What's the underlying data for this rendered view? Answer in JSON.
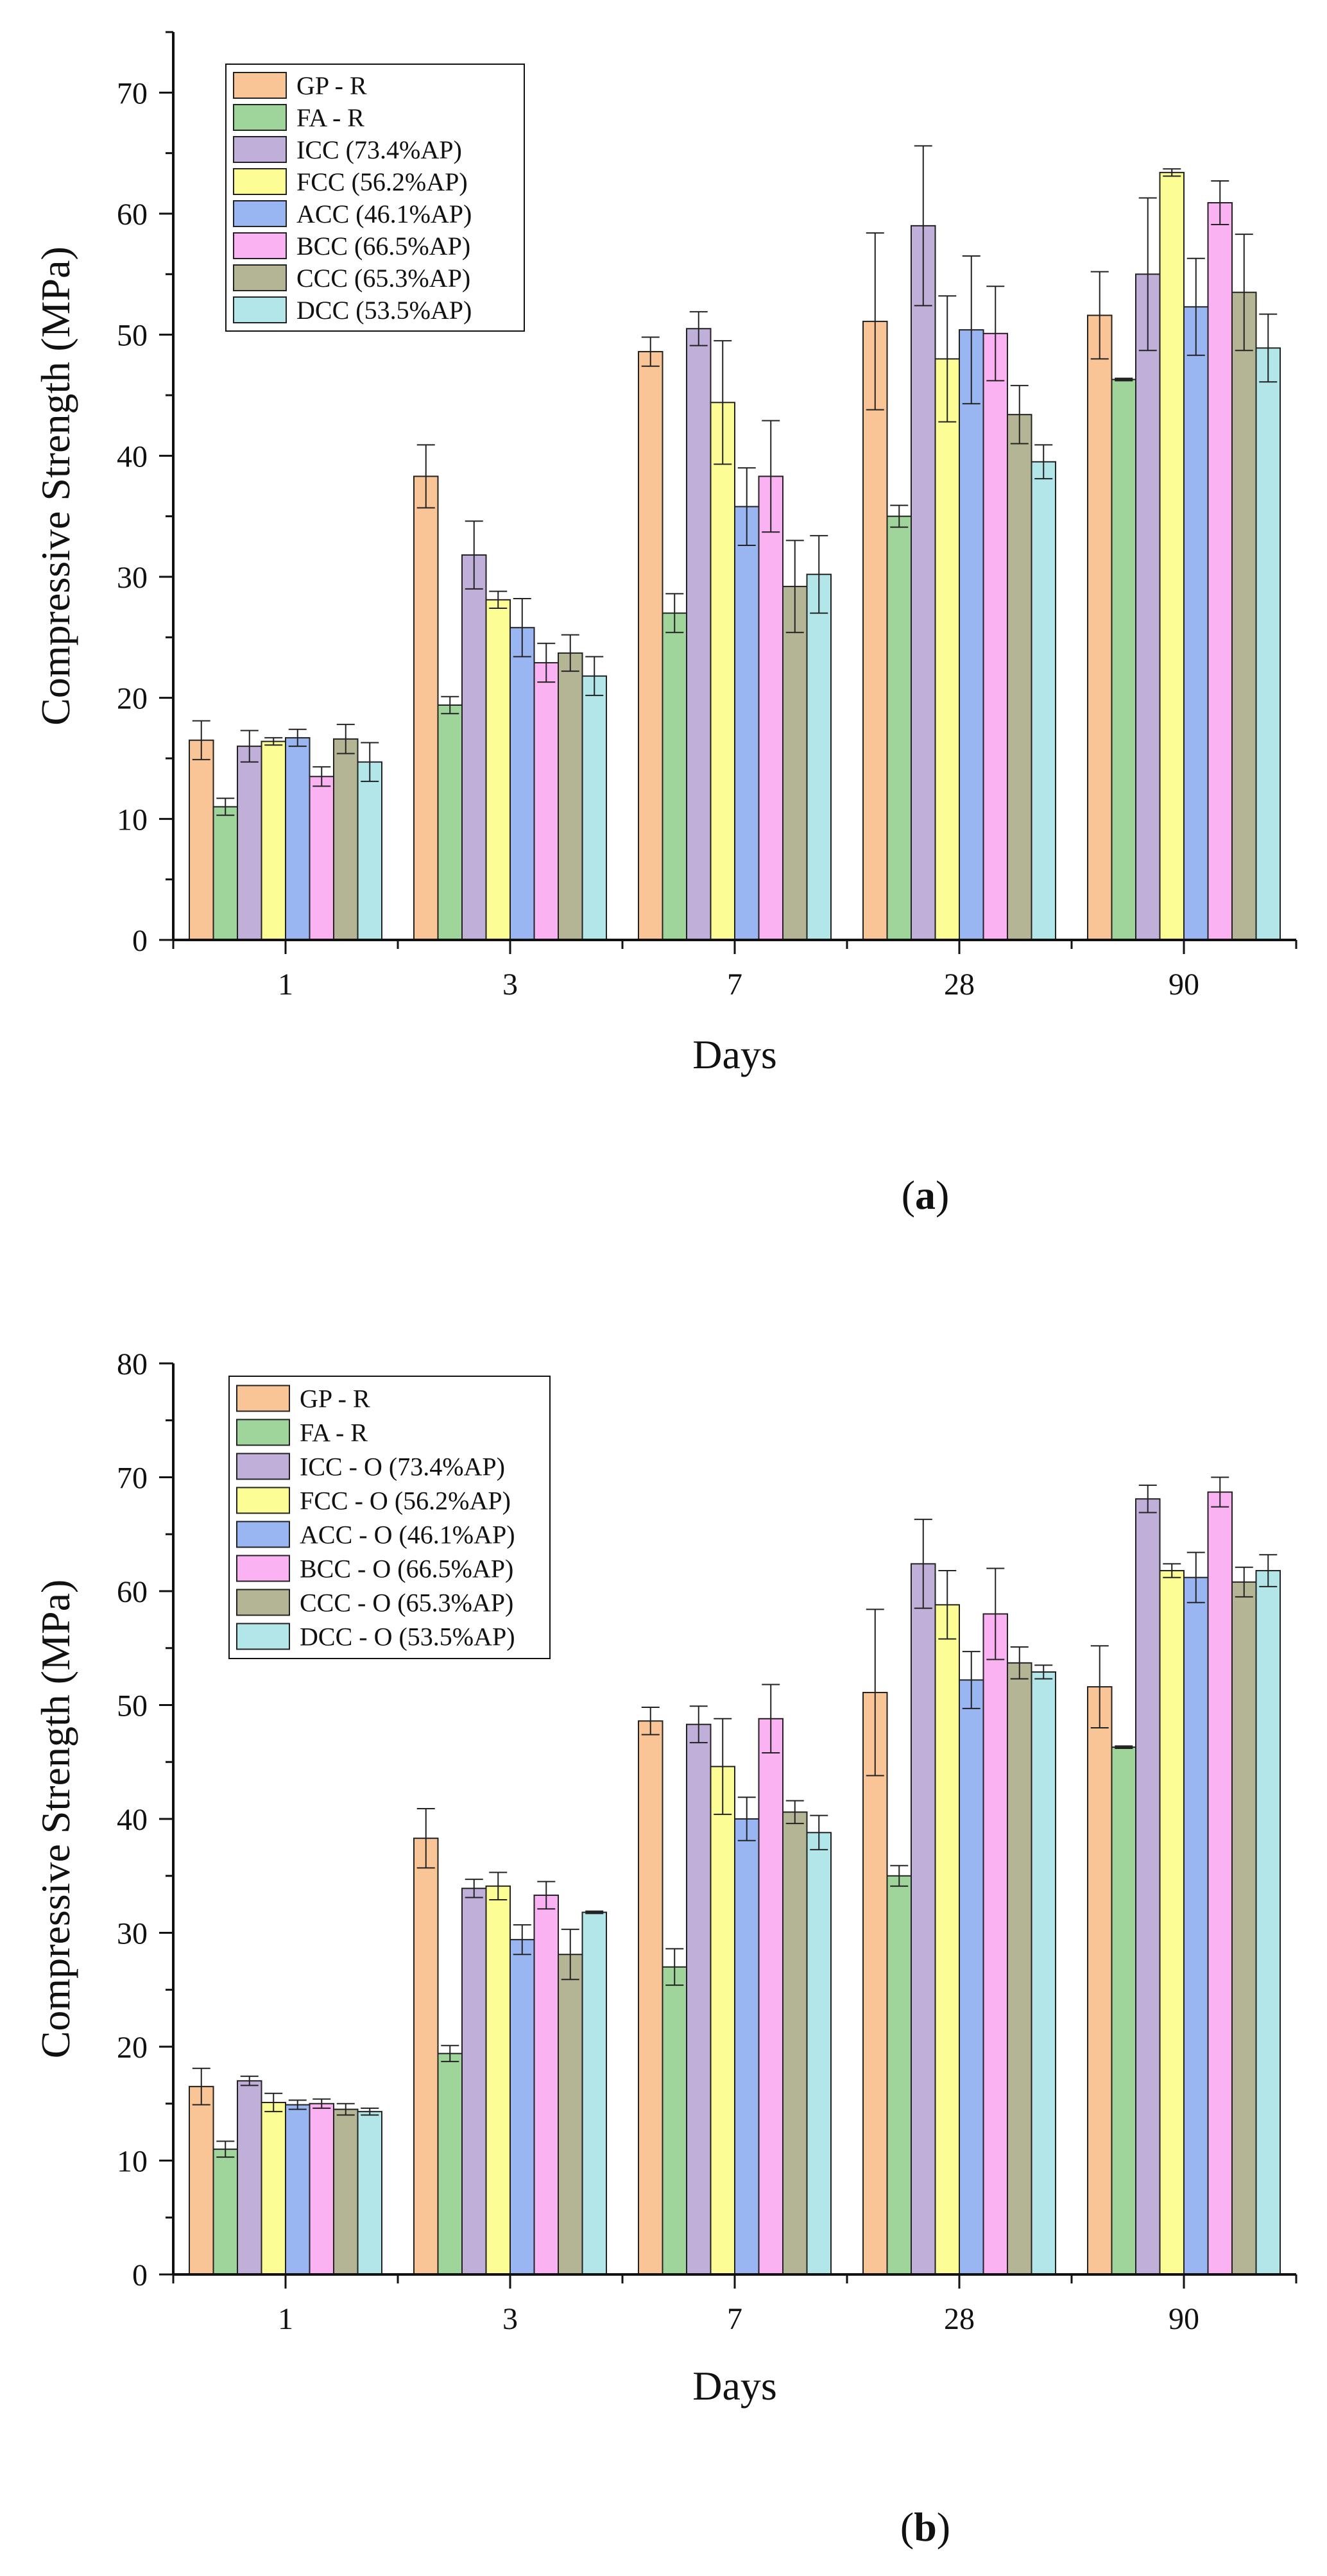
{
  "chart_data": [
    {
      "type": "bar",
      "panel_label": "a",
      "xlabel": "Days",
      "ylabel": "Compressive Strength (MPa)",
      "ylim": [
        0,
        75
      ],
      "yticks": [
        "0",
        "10",
        "20",
        "30",
        "40",
        "50",
        "60",
        "70"
      ],
      "categories": [
        "1",
        "3",
        "7",
        "28",
        "90"
      ],
      "legend_position": "top-left",
      "series": [
        {
          "name": "GP - R",
          "color": "#f9c597",
          "values": [
            16.5,
            38.3,
            48.6,
            51.1,
            51.6
          ],
          "errors": [
            1.6,
            2.6,
            1.2,
            7.3,
            3.6
          ]
        },
        {
          "name": "FA - R",
          "color": "#9fd49a",
          "values": [
            11.0,
            19.4,
            27.0,
            35.0,
            46.3
          ],
          "errors": [
            0.7,
            0.7,
            1.6,
            0.9,
            0.1
          ]
        },
        {
          "name": "ICC (73.4%AP)",
          "color": "#c0b0d9",
          "values": [
            16.0,
            31.8,
            50.5,
            59.0,
            55.0
          ],
          "errors": [
            1.3,
            2.8,
            1.4,
            6.6,
            6.3
          ]
        },
        {
          "name": "FCC (56.2%AP)",
          "color": "#fdfd96",
          "values": [
            16.4,
            28.1,
            44.4,
            48.0,
            63.4
          ],
          "errors": [
            0.3,
            0.7,
            5.1,
            5.2,
            0.3
          ]
        },
        {
          "name": "ACC (46.1%AP)",
          "color": "#9ab6f2",
          "values": [
            16.7,
            25.8,
            35.8,
            50.4,
            52.3
          ],
          "errors": [
            0.7,
            2.4,
            3.2,
            6.1,
            4.0
          ]
        },
        {
          "name": "BCC (66.5%AP)",
          "color": "#fbb2f2",
          "values": [
            13.5,
            22.9,
            38.3,
            50.1,
            60.9
          ],
          "errors": [
            0.8,
            1.6,
            4.6,
            3.9,
            1.8
          ]
        },
        {
          "name": "CCC (65.3%AP)",
          "color": "#b4b595",
          "values": [
            16.6,
            23.7,
            29.2,
            43.4,
            53.5
          ],
          "errors": [
            1.2,
            1.5,
            3.8,
            2.4,
            4.8
          ]
        },
        {
          "name": "DCC (53.5%AP)",
          "color": "#b2e6e8",
          "values": [
            14.7,
            21.8,
            30.2,
            39.5,
            48.9
          ],
          "errors": [
            1.6,
            1.6,
            3.2,
            1.4,
            2.8
          ]
        }
      ]
    },
    {
      "type": "bar",
      "panel_label": "b",
      "xlabel": "Days",
      "ylabel": "Compressive Strength (MPa)",
      "ylim": [
        0,
        80
      ],
      "yticks": [
        "0",
        "10",
        "20",
        "30",
        "40",
        "50",
        "60",
        "70",
        "80"
      ],
      "categories": [
        "1",
        "3",
        "7",
        "28",
        "90"
      ],
      "legend_position": "top-left",
      "series": [
        {
          "name": "GP - R",
          "color": "#f9c597",
          "values": [
            16.5,
            38.3,
            48.6,
            51.1,
            51.6
          ],
          "errors": [
            1.6,
            2.6,
            1.2,
            7.3,
            3.6
          ]
        },
        {
          "name": "FA - R",
          "color": "#9fd49a",
          "values": [
            11.0,
            19.4,
            27.0,
            35.0,
            46.3
          ],
          "errors": [
            0.7,
            0.7,
            1.6,
            0.9,
            0.1
          ]
        },
        {
          "name": "ICC - O (73.4%AP)",
          "color": "#c0b0d9",
          "values": [
            17.0,
            33.9,
            48.3,
            62.4,
            68.1
          ],
          "errors": [
            0.4,
            0.8,
            1.6,
            3.9,
            1.2
          ]
        },
        {
          "name": "FCC - O (56.2%AP)",
          "color": "#fdfd96",
          "values": [
            15.1,
            34.1,
            44.6,
            58.8,
            61.8
          ],
          "errors": [
            0.8,
            1.2,
            4.2,
            3.0,
            0.6
          ]
        },
        {
          "name": "ACC - O (46.1%AP)",
          "color": "#9ab6f2",
          "values": [
            14.9,
            29.4,
            40.0,
            52.2,
            61.2
          ],
          "errors": [
            0.4,
            1.3,
            1.9,
            2.5,
            2.2
          ]
        },
        {
          "name": "BCC - O (66.5%AP)",
          "color": "#fbb2f2",
          "values": [
            15.0,
            33.3,
            48.8,
            58.0,
            68.7
          ],
          "errors": [
            0.4,
            1.2,
            3.0,
            4.0,
            1.3
          ]
        },
        {
          "name": "CCC - O (65.3%AP)",
          "color": "#b4b595",
          "values": [
            14.5,
            28.1,
            40.6,
            53.7,
            60.8
          ],
          "errors": [
            0.5,
            2.2,
            1.0,
            1.4,
            1.3
          ]
        },
        {
          "name": "DCC - O (53.5%AP)",
          "color": "#b2e6e8",
          "values": [
            14.3,
            31.8,
            38.8,
            52.9,
            61.8
          ],
          "errors": [
            0.3,
            0.1,
            1.5,
            0.6,
            1.4
          ]
        }
      ]
    }
  ]
}
